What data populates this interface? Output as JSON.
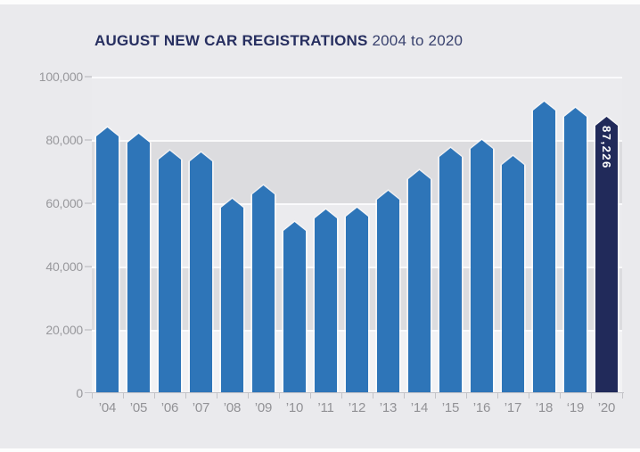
{
  "title": {
    "main": "AUGUST NEW CAR REGISTRATIONS",
    "range": "2004 to 2020"
  },
  "colors": {
    "bar_blue": "#2e75b8",
    "bar_navy_highlight": "#212a5a",
    "title_navy": "#272f60",
    "axis_text_gray": "#98989c"
  },
  "chart_data": {
    "type": "bar",
    "title": "AUGUST NEW CAR REGISTRATIONS 2004 to 2020",
    "xlabel": "",
    "ylabel": "",
    "ylim": [
      0,
      100000
    ],
    "ytick_values": [
      0,
      20000,
      40000,
      60000,
      80000,
      100000
    ],
    "ytick_labels": [
      "0",
      "20,000",
      "40,000",
      "60,000",
      "80,000",
      "100,000"
    ],
    "grid": "alternating horizontal bands with white gridlines every 20,000",
    "legend": "none",
    "bar_color": "#2e75b8",
    "categories": [
      "’04",
      "’05",
      "’06",
      "’07",
      "’08",
      "’09",
      "’10",
      "’11",
      "’12",
      "’13",
      "’14",
      "’15",
      "’16",
      "’17",
      "’18",
      "‘19",
      "’20"
    ],
    "values": [
      84000,
      82000,
      76500,
      76000,
      61500,
      65500,
      54000,
      58000,
      58500,
      64000,
      70500,
      77500,
      80000,
      75000,
      92000,
      90000,
      87226
    ],
    "highlight": {
      "category": "’20",
      "index": 16,
      "value": 87226,
      "label": "87,226",
      "color": "#212a5a",
      "label_color": "#ffffff"
    }
  }
}
